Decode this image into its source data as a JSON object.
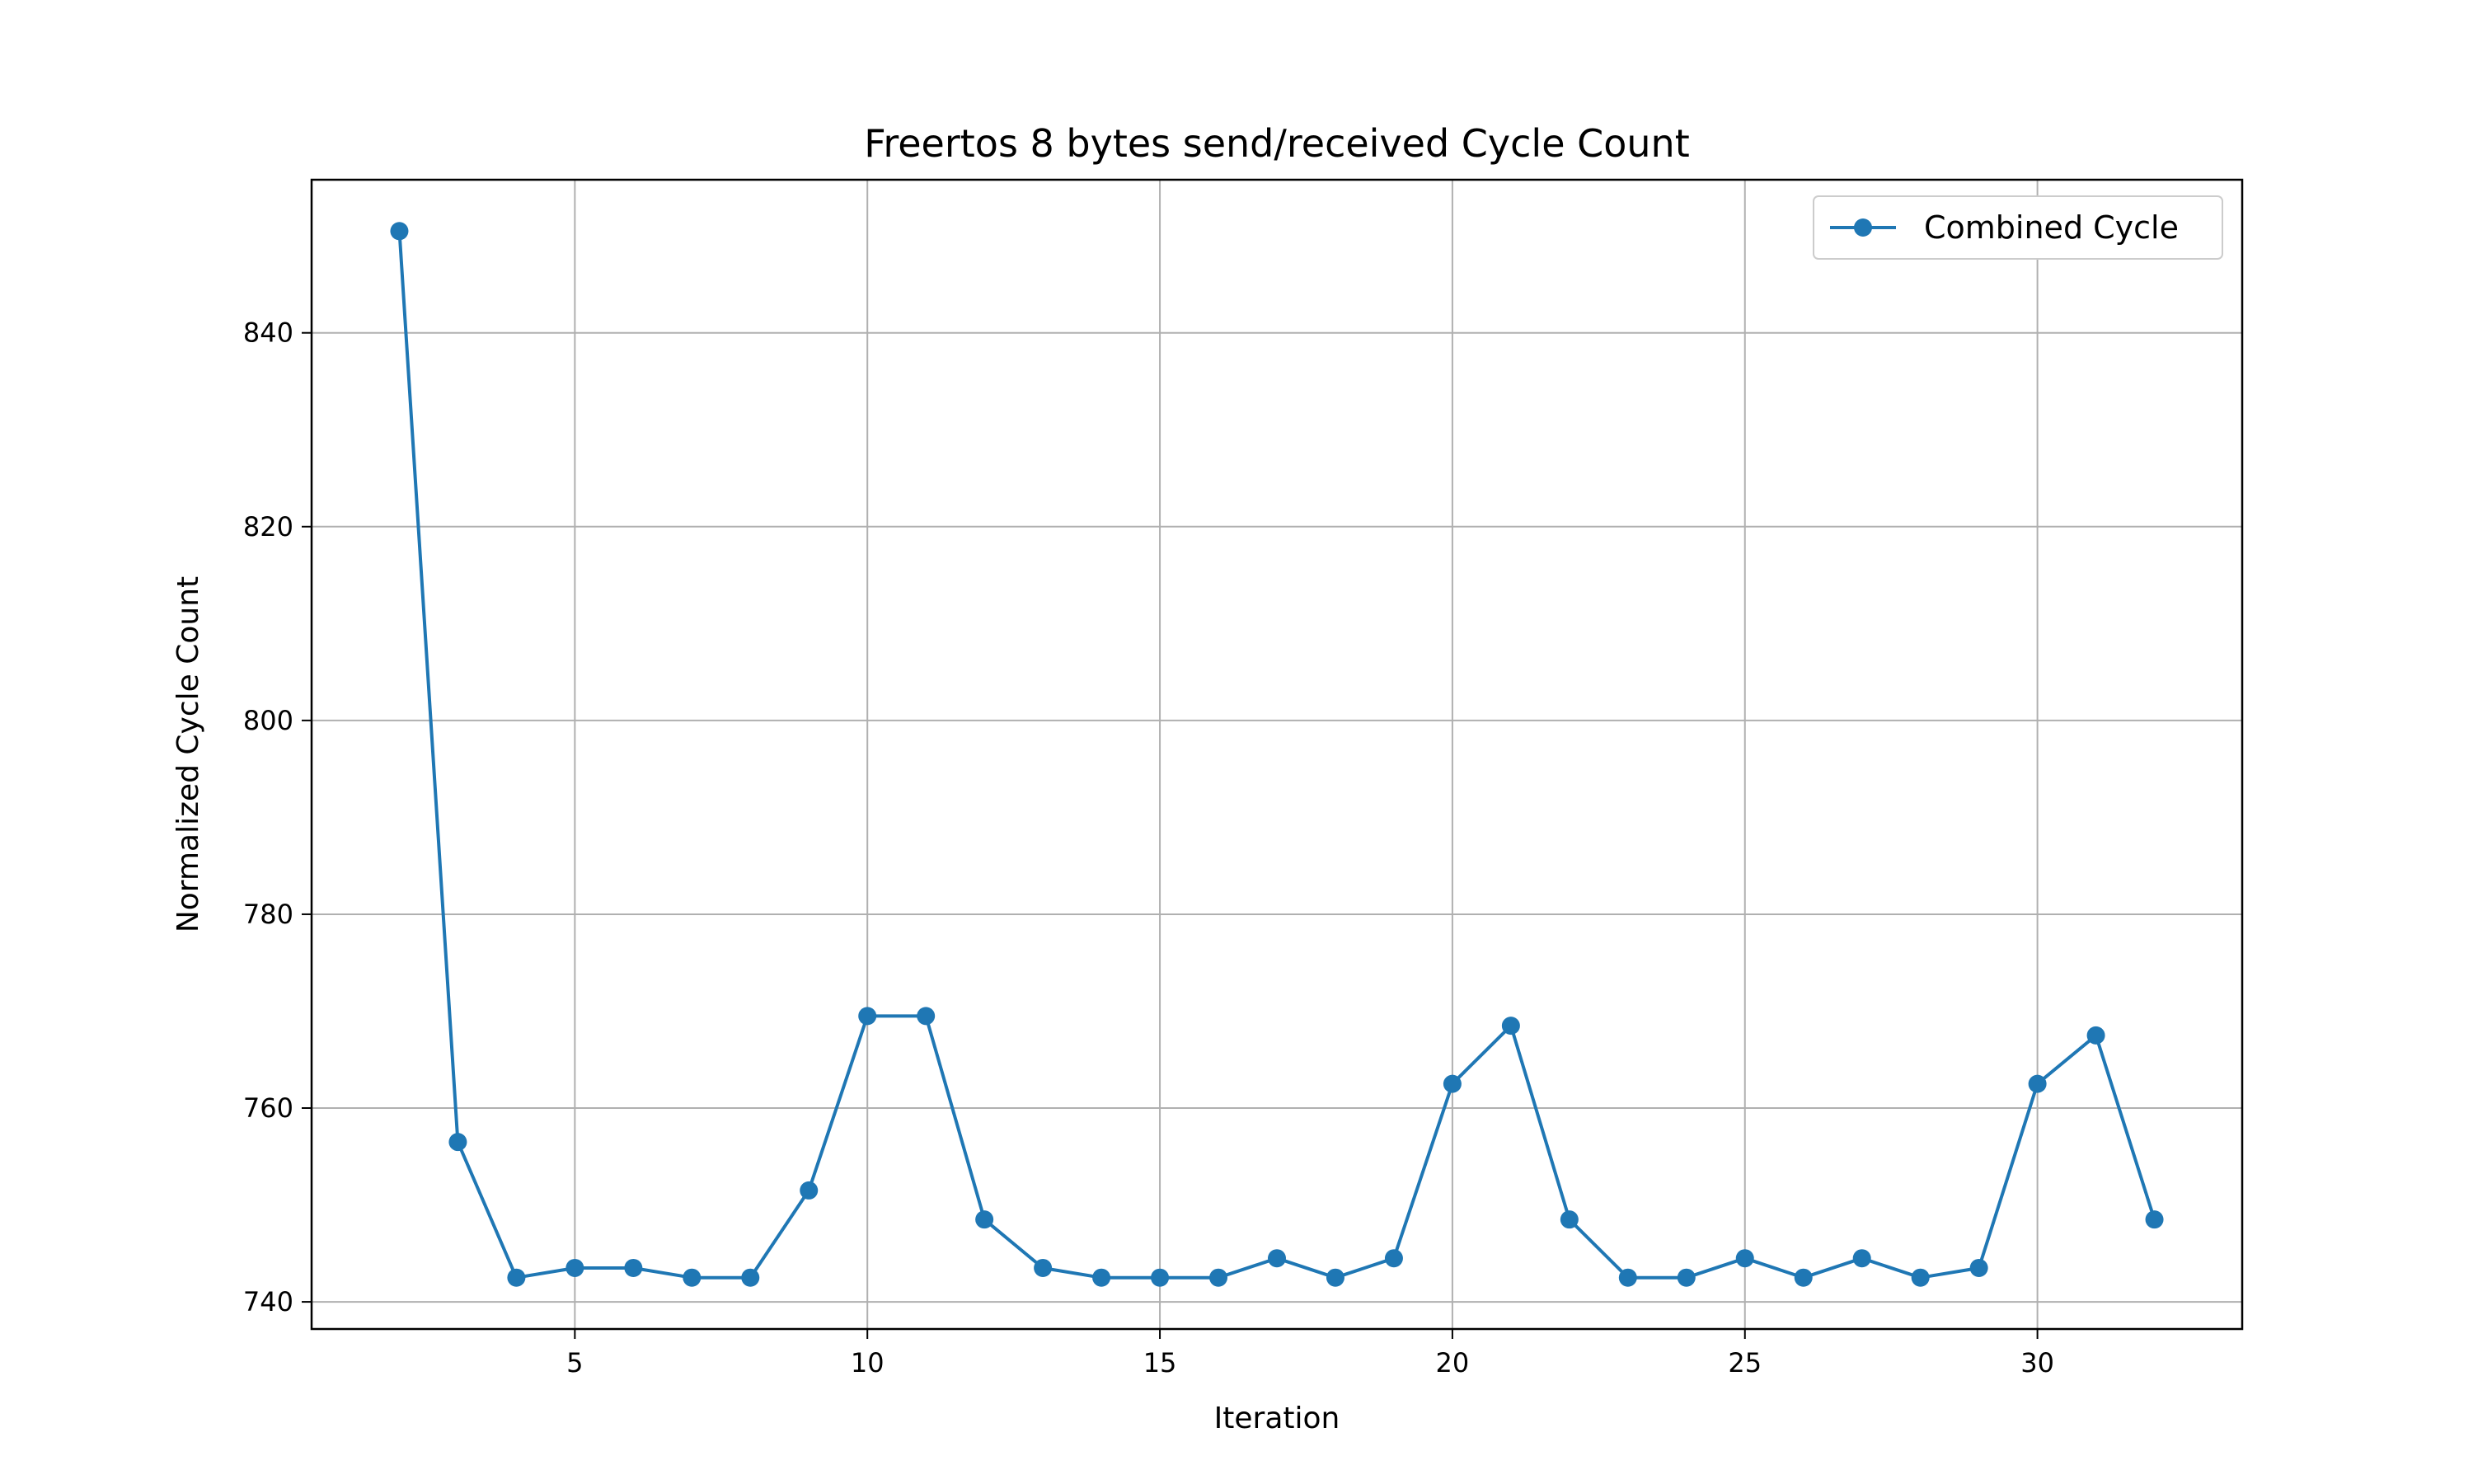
{
  "chart_data": {
    "type": "line",
    "title": "Freertos 8 bytes send/received Cycle Count",
    "xlabel": "Iteration",
    "ylabel": "Normalized Cycle Count",
    "xlim": [
      0.5,
      33.5
    ],
    "ylim": [
      737.2,
      855.8
    ],
    "xticks": [
      5,
      10,
      15,
      20,
      25,
      30
    ],
    "yticks": [
      740,
      760,
      780,
      800,
      820,
      840
    ],
    "grid": true,
    "legend_position": "top-right",
    "series": [
      {
        "name": "Combined Cycle",
        "color": "#1f77b4",
        "marker": "circle",
        "x": [
          2,
          3,
          4,
          5,
          6,
          7,
          8,
          9,
          10,
          11,
          12,
          13,
          14,
          15,
          16,
          17,
          18,
          19,
          20,
          21,
          22,
          23,
          24,
          25,
          26,
          27,
          28,
          29,
          30,
          31,
          32
        ],
        "y": [
          850.5,
          756.5,
          742.5,
          743.5,
          743.5,
          742.5,
          742.5,
          751.5,
          769.5,
          769.5,
          748.5,
          743.5,
          742.5,
          742.5,
          742.5,
          744.5,
          742.5,
          744.5,
          762.5,
          768.5,
          748.5,
          742.5,
          742.5,
          744.5,
          742.5,
          744.5,
          742.5,
          743.5,
          762.5,
          767.5,
          748.5
        ]
      }
    ]
  }
}
